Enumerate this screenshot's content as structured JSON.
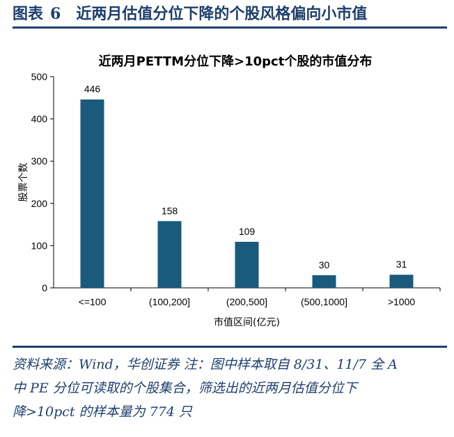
{
  "figure": {
    "label": "图表",
    "number": "6",
    "title": "近两月估值分位下降的个股风格偏向小市值"
  },
  "note": {
    "lines": [
      "资料来源：Wind，华创证券 注：图中样本取自 8/31、11/7 全 A",
      "中 PE 分位可读取的个股集合，筛选出的近两月估值分位下",
      "降>10pct 的样本量为 774 只"
    ]
  },
  "colors": {
    "bar": "#1a5a7c",
    "accent": "#1d3f6e"
  },
  "chart_data": {
    "type": "bar",
    "title": "近两月PETTM分位下降>10pct个股的市值分布",
    "categories": [
      "<=100",
      "(100,200]",
      "(200,500]",
      "(500,1000]",
      ">1000"
    ],
    "values": [
      446,
      158,
      109,
      30,
      31
    ],
    "data_labels": [
      "446",
      "158",
      "109",
      "30",
      "31"
    ],
    "xlabel": "市值区间(亿元)",
    "ylabel": "股票个数",
    "ylim": [
      0,
      500
    ],
    "yticks": [
      0,
      100,
      200,
      300,
      400,
      500
    ],
    "grid": false,
    "legend": "none"
  }
}
